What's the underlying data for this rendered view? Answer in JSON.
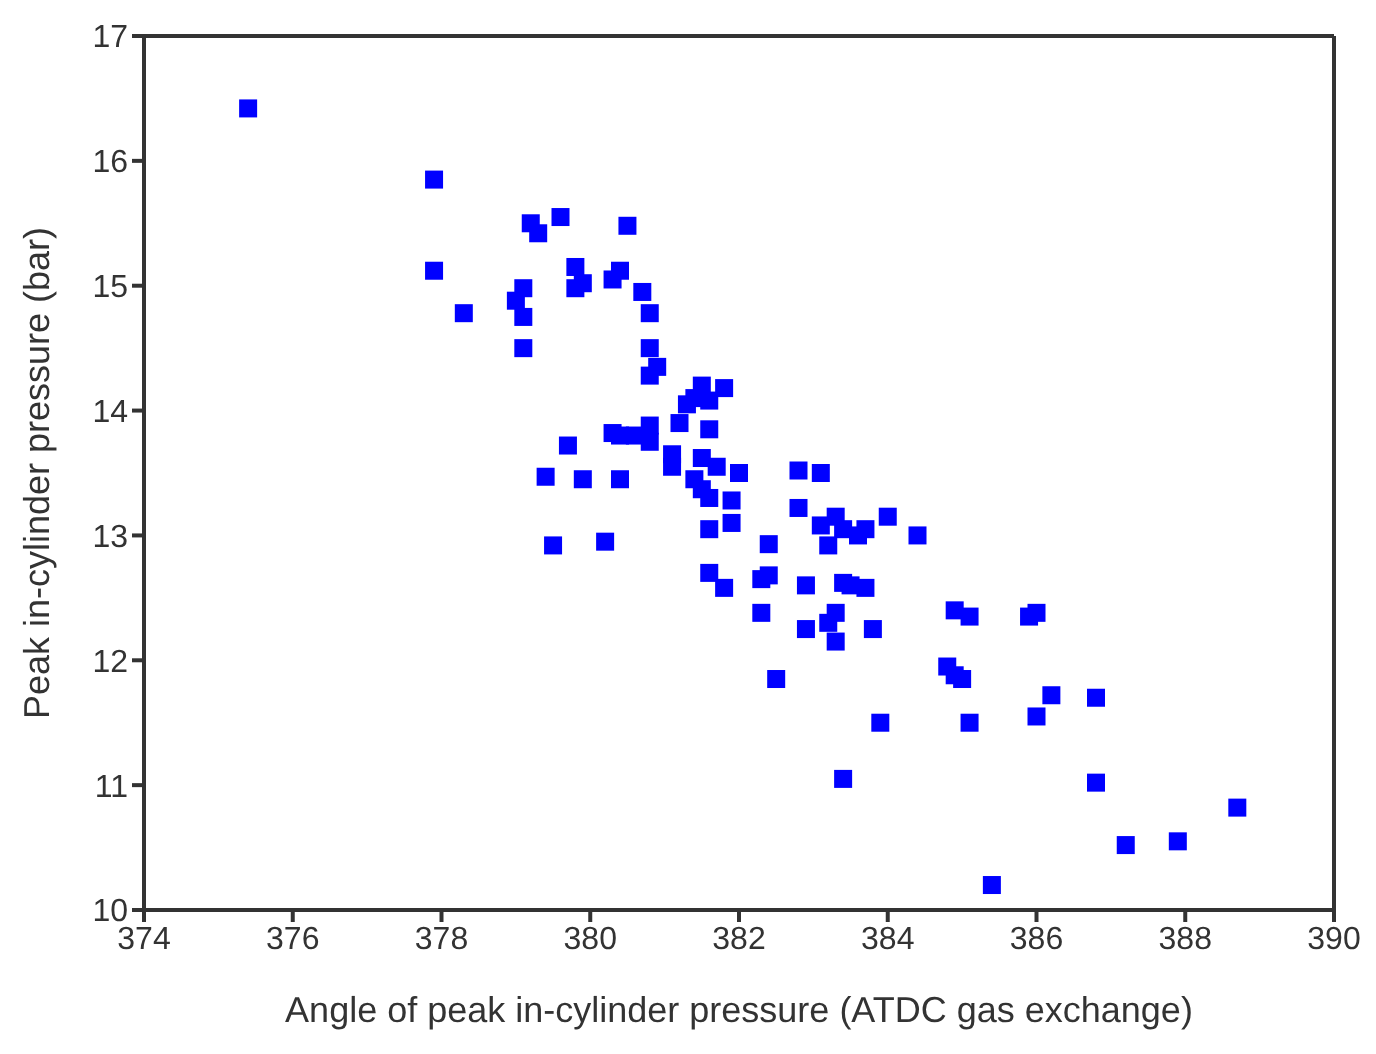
{
  "chart_data": {
    "type": "scatter",
    "xlabel": "Angle of peak in-cylinder pressure (ATDC gas exchange)",
    "ylabel": "Peak in-cylinder pressure (bar)",
    "xlim": [
      374,
      390
    ],
    "xticks": [
      374,
      376,
      378,
      380,
      382,
      384,
      386,
      388,
      390
    ],
    "ylim": [
      10,
      17
    ],
    "yticks": [
      10,
      11,
      12,
      13,
      14,
      15,
      16,
      17
    ],
    "legend": false,
    "marker": "square",
    "series": [
      {
        "color": "#0000ff",
        "x": [
          375.4,
          377.9,
          377.9,
          378.3,
          379.2,
          379.3,
          379.6,
          379.0,
          379.1,
          379.1,
          379.1,
          379.8,
          379.8,
          379.9,
          379.7,
          379.4,
          379.9,
          379.5,
          380.3,
          380.4,
          380.5,
          380.7,
          380.8,
          380.8,
          380.9,
          380.8,
          380.3,
          380.4,
          380.6,
          380.8,
          380.8,
          380.4,
          380.2,
          381.1,
          381.1,
          381.2,
          381.3,
          381.4,
          381.5,
          381.6,
          381.8,
          381.4,
          381.5,
          381.6,
          381.6,
          381.5,
          381.7,
          382.0,
          381.6,
          381.6,
          381.8,
          381.9,
          381.9,
          382.3,
          382.4,
          382.4,
          382.3,
          382.5,
          382.8,
          382.8,
          382.9,
          382.9,
          383.1,
          383.1,
          383.2,
          383.3,
          383.2,
          383.3,
          383.3,
          383.4,
          383.4,
          383.5,
          383.7,
          383.7,
          383.6,
          383.8,
          384.0,
          384.4,
          383.9,
          383.4,
          384.8,
          384.9,
          385.1,
          384.9,
          385.0,
          385.1,
          385.4,
          385.9,
          386.0,
          386.2,
          386.0,
          386.8,
          386.8,
          387.2,
          387.9,
          388.7
        ],
        "values": [
          16.42,
          15.85,
          15.12,
          14.78,
          15.5,
          15.42,
          15.55,
          14.88,
          14.98,
          14.75,
          14.5,
          15.15,
          14.98,
          15.02,
          13.72,
          13.47,
          13.45,
          12.92,
          15.05,
          15.12,
          15.48,
          14.95,
          14.78,
          14.5,
          14.35,
          14.28,
          13.82,
          13.8,
          13.8,
          13.88,
          13.75,
          13.45,
          12.95,
          13.65,
          13.55,
          13.9,
          14.05,
          14.1,
          14.2,
          14.08,
          14.18,
          13.45,
          13.37,
          13.3,
          13.85,
          13.62,
          13.55,
          13.5,
          13.05,
          12.7,
          12.58,
          13.28,
          13.1,
          12.65,
          12.93,
          12.68,
          12.38,
          11.85,
          13.52,
          13.22,
          12.6,
          12.25,
          13.5,
          13.08,
          12.92,
          13.15,
          12.3,
          12.15,
          12.38,
          13.05,
          12.62,
          12.6,
          13.05,
          12.58,
          13.0,
          12.25,
          13.15,
          13.0,
          11.5,
          11.05,
          11.95,
          12.4,
          12.35,
          11.88,
          11.85,
          11.5,
          10.2,
          12.35,
          12.38,
          11.72,
          11.55,
          11.7,
          11.02,
          10.52,
          10.55,
          10.82
        ]
      }
    ]
  }
}
